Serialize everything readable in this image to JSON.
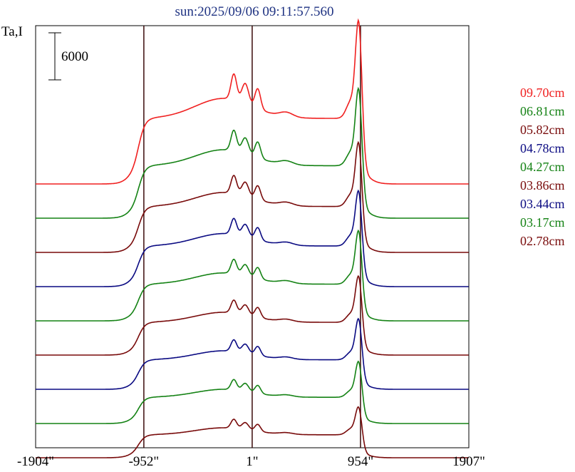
{
  "chart_data": {
    "type": "line",
    "title": "sun:2025/09/06 09:11:57.560",
    "ylabel": "Ta,I",
    "xlabel": "",
    "x_ticks": [
      "-1904\"",
      "-952\"",
      "1\"",
      "954\"",
      "1907\""
    ],
    "x_tick_values": [
      -1904,
      -952,
      1,
      954,
      1907
    ],
    "xlim": [
      -1904,
      1907
    ],
    "vertical_markers": [
      -952,
      1,
      954
    ],
    "scale_bar": {
      "label": "6000",
      "value": 6000
    },
    "grid": false,
    "legend_position": "right",
    "series": [
      {
        "name": "09.70cm",
        "color": "#f02020",
        "offset": 45000,
        "peak": 29000,
        "level": 10000
      },
      {
        "name": "06.81cm",
        "color": "#148214",
        "offset": 39000,
        "peak": 23000,
        "level": 8000
      },
      {
        "name": "05.82cm",
        "color": "#780a0a",
        "offset": 33000,
        "peak": 19500,
        "level": 7000
      },
      {
        "name": "04.78cm",
        "color": "#0a0a82",
        "offset": 27000,
        "peak": 17000,
        "level": 6200
      },
      {
        "name": "04.27cm",
        "color": "#148214",
        "offset": 21000,
        "peak": 16000,
        "level": 5600
      },
      {
        "name": "03.86cm",
        "color": "#780a0a",
        "offset": 15000,
        "peak": 14000,
        "level": 5000
      },
      {
        "name": "03.44cm",
        "color": "#0a0a82",
        "offset": 9000,
        "peak": 12500,
        "level": 4500
      },
      {
        "name": "03.17cm",
        "color": "#148214",
        "offset": 3000,
        "peak": 11000,
        "level": 4000
      },
      {
        "name": "02.78cm",
        "color": "#780a0a",
        "offset": -3000,
        "peak": 9000,
        "level": 3500
      }
    ]
  }
}
